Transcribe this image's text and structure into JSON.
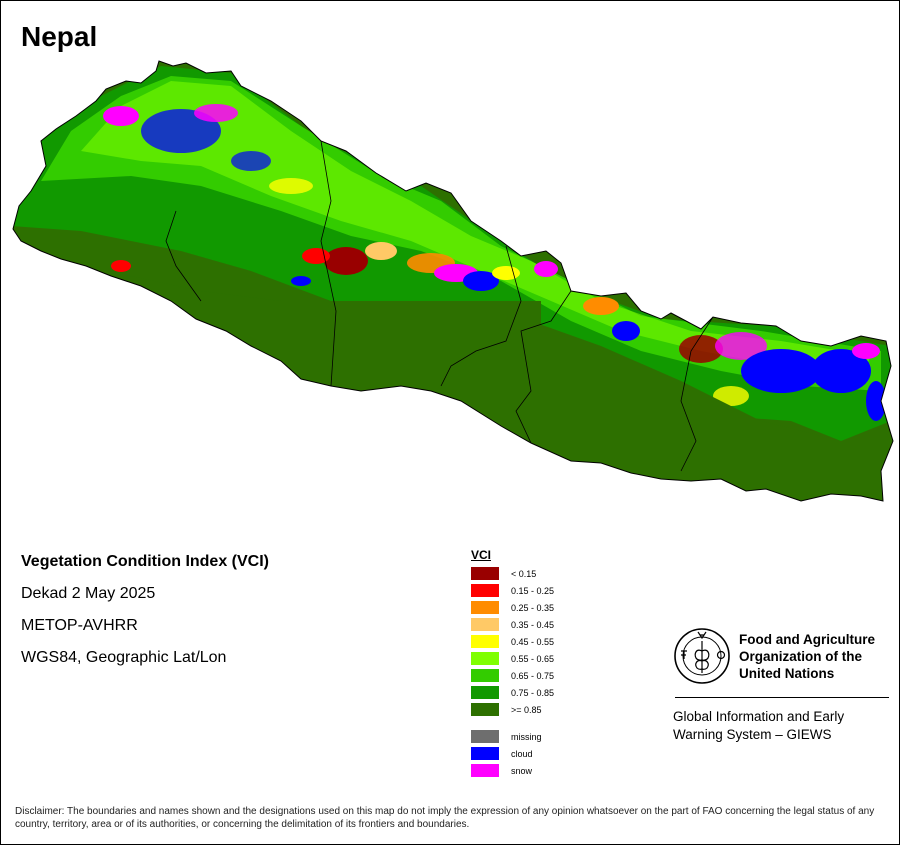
{
  "title": "Nepal",
  "info": {
    "index_name": "Vegetation Condition Index (VCI)",
    "period": "Dekad 2 May 2025",
    "sensor": "METOP-AVHRR",
    "projection": "WGS84, Geographic Lat/Lon"
  },
  "legend": {
    "title": "VCI",
    "classes": [
      {
        "label": "< 0.15",
        "color": "#990000"
      },
      {
        "label": "0.15 - 0.25",
        "color": "#ff0000"
      },
      {
        "label": "0.25 - 0.35",
        "color": "#ff8c00"
      },
      {
        "label": "0.35 - 0.45",
        "color": "#ffc966"
      },
      {
        "label": "0.45 - 0.55",
        "color": "#ffff00"
      },
      {
        "label": "0.55 - 0.65",
        "color": "#7fff00"
      },
      {
        "label": "0.65 - 0.75",
        "color": "#33cc00"
      },
      {
        "label": "0.75 - 0.85",
        "color": "#119900"
      },
      {
        "label": ">= 0.85",
        "color": "#2d7000"
      }
    ],
    "special": [
      {
        "label": "missing",
        "color": "#6e6e6e"
      },
      {
        "label": "cloud",
        "color": "#0000ff"
      },
      {
        "label": "snow",
        "color": "#ff00ff"
      }
    ]
  },
  "organization": {
    "name": "Food and Agriculture\nOrganization of the\nUnited Nations",
    "system": "Global Information and Early\nWarning System – GIEWS"
  },
  "disclaimer": "Disclaimer: The boundaries and names shown and the designations used on this map do not imply the expression of any opinion whatsoever on the part of FAO concerning the legal status of any country, territory, area or of its authorities, or concerning the delimitation of its frontiers and boundaries."
}
